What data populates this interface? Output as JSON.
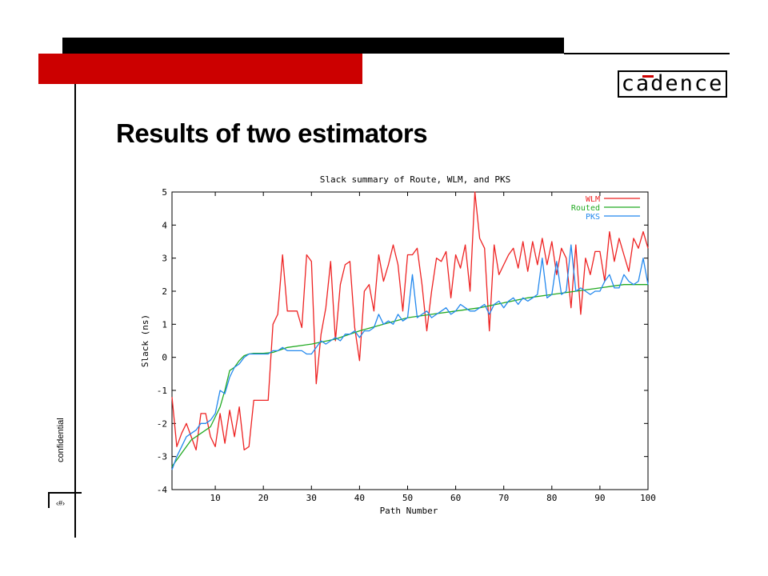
{
  "slide": {
    "title": "Results of two estimators",
    "confidential": "confidential",
    "page_number": "‹#›",
    "logo_text": "cadence",
    "colors": {
      "red_bar": "#cc0000",
      "black_bar": "#000000"
    }
  },
  "chart_data": {
    "type": "line",
    "title": "Slack summary of Route, WLM, and PKS",
    "xlabel": "Path Number",
    "ylabel": "Slack (ns)",
    "xlim": [
      1,
      100
    ],
    "ylim": [
      -4,
      5
    ],
    "xticks": [
      10,
      20,
      30,
      40,
      50,
      60,
      70,
      80,
      90,
      100
    ],
    "yticks": [
      -4,
      -3,
      -2,
      -1,
      0,
      1,
      2,
      3,
      4,
      5
    ],
    "legend_position": "top-right",
    "grid": false,
    "series": [
      {
        "name": "WLM",
        "color": "#ee2222",
        "x": [
          1,
          2,
          3,
          4,
          5,
          6,
          7,
          8,
          9,
          10,
          11,
          12,
          13,
          14,
          15,
          16,
          17,
          18,
          19,
          20,
          21,
          22,
          23,
          24,
          25,
          26,
          27,
          28,
          29,
          30,
          31,
          32,
          33,
          34,
          35,
          36,
          37,
          38,
          39,
          40,
          41,
          42,
          43,
          44,
          45,
          46,
          47,
          48,
          49,
          50,
          51,
          52,
          53,
          54,
          55,
          56,
          57,
          58,
          59,
          60,
          61,
          62,
          63,
          64,
          65,
          66,
          67,
          68,
          69,
          70,
          71,
          72,
          73,
          74,
          75,
          76,
          77,
          78,
          79,
          80,
          81,
          82,
          83,
          84,
          85,
          86,
          87,
          88,
          89,
          90,
          91,
          92,
          93,
          94,
          95,
          96,
          97,
          98,
          99,
          100
        ],
        "values": [
          -1.2,
          -2.7,
          -2.3,
          -2.0,
          -2.4,
          -2.8,
          -1.7,
          -1.7,
          -2.4,
          -2.7,
          -1.7,
          -2.6,
          -1.6,
          -2.4,
          -1.5,
          -2.8,
          -2.7,
          -1.3,
          -1.3,
          -1.3,
          -1.3,
          1.0,
          1.3,
          3.1,
          1.4,
          1.4,
          1.4,
          0.9,
          3.1,
          2.9,
          -0.8,
          0.7,
          1.5,
          2.9,
          0.5,
          2.2,
          2.8,
          2.9,
          0.9,
          -0.1,
          2.0,
          2.2,
          1.4,
          3.1,
          2.3,
          2.8,
          3.4,
          2.8,
          1.4,
          3.1,
          3.1,
          3.3,
          2.2,
          0.8,
          2.0,
          3.0,
          2.9,
          3.2,
          1.8,
          3.1,
          2.7,
          3.4,
          2.0,
          5.0,
          3.6,
          3.3,
          0.8,
          3.4,
          2.5,
          2.8,
          3.1,
          3.3,
          2.7,
          3.5,
          2.6,
          3.5,
          2.8,
          3.6,
          2.8,
          3.5,
          2.5,
          3.3,
          3.0,
          1.5,
          3.4,
          1.3,
          3.0,
          2.5,
          3.2,
          3.2,
          2.3,
          3.8,
          2.9,
          3.6,
          3.1,
          2.6,
          3.6,
          3.3,
          3.8,
          3.3
        ]
      },
      {
        "name": "Routed",
        "color": "#22aa22",
        "x": [
          1,
          3,
          5,
          7,
          9,
          10,
          11,
          12,
          13,
          14,
          15,
          16,
          17,
          18,
          20,
          22,
          25,
          30,
          35,
          40,
          45,
          50,
          55,
          60,
          65,
          70,
          75,
          80,
          85,
          90,
          95,
          100
        ],
        "values": [
          -3.3,
          -2.9,
          -2.5,
          -2.3,
          -2.1,
          -1.8,
          -1.5,
          -1.0,
          -0.4,
          -0.3,
          -0.1,
          0.05,
          0.1,
          0.12,
          0.12,
          0.15,
          0.3,
          0.4,
          0.55,
          0.8,
          1.0,
          1.2,
          1.3,
          1.4,
          1.5,
          1.65,
          1.8,
          1.9,
          2.0,
          2.1,
          2.2,
          2.2
        ]
      },
      {
        "name": "PKS",
        "color": "#2288ee",
        "x": [
          1,
          2,
          3,
          4,
          5,
          6,
          7,
          8,
          9,
          10,
          11,
          12,
          13,
          14,
          15,
          16,
          17,
          18,
          19,
          20,
          21,
          22,
          23,
          24,
          25,
          26,
          27,
          28,
          29,
          30,
          31,
          32,
          33,
          34,
          35,
          36,
          37,
          38,
          39,
          40,
          41,
          42,
          43,
          44,
          45,
          46,
          47,
          48,
          49,
          50,
          51,
          52,
          53,
          54,
          55,
          56,
          57,
          58,
          59,
          60,
          61,
          62,
          63,
          64,
          65,
          66,
          67,
          68,
          69,
          70,
          71,
          72,
          73,
          74,
          75,
          76,
          77,
          78,
          79,
          80,
          81,
          82,
          83,
          84,
          85,
          86,
          87,
          88,
          89,
          90,
          91,
          92,
          93,
          94,
          95,
          96,
          97,
          98,
          99,
          100
        ],
        "values": [
          -3.4,
          -3.0,
          -2.7,
          -2.4,
          -2.3,
          -2.2,
          -2.0,
          -2.0,
          -1.9,
          -1.7,
          -1.0,
          -1.1,
          -0.6,
          -0.3,
          -0.2,
          0.0,
          0.1,
          0.1,
          0.1,
          0.1,
          0.1,
          0.2,
          0.2,
          0.3,
          0.2,
          0.2,
          0.2,
          0.2,
          0.1,
          0.1,
          0.3,
          0.5,
          0.4,
          0.5,
          0.6,
          0.5,
          0.7,
          0.7,
          0.8,
          0.6,
          0.8,
          0.8,
          0.9,
          1.3,
          1.0,
          1.1,
          1.0,
          1.3,
          1.1,
          1.2,
          2.5,
          1.2,
          1.3,
          1.4,
          1.2,
          1.3,
          1.4,
          1.5,
          1.3,
          1.4,
          1.6,
          1.5,
          1.4,
          1.4,
          1.5,
          1.6,
          1.3,
          1.6,
          1.7,
          1.5,
          1.7,
          1.8,
          1.6,
          1.8,
          1.7,
          1.8,
          1.9,
          3.0,
          1.8,
          1.9,
          2.9,
          1.9,
          2.0,
          3.4,
          2.0,
          2.1,
          2.0,
          1.9,
          2.0,
          2.0,
          2.3,
          2.5,
          2.1,
          2.1,
          2.5,
          2.3,
          2.2,
          2.3,
          3.0,
          2.2
        ]
      }
    ]
  }
}
